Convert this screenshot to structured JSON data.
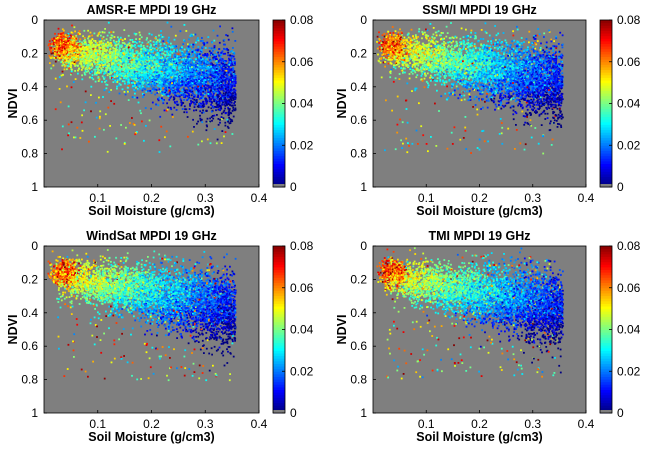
{
  "chart_data": [
    {
      "type": "heatmap",
      "title": "AMSR-E MPDI 19 GHz",
      "xlabel": "Soil Moisture (g/cm3)",
      "ylabel": "NDVI",
      "xlim": [
        0,
        0.4
      ],
      "ylim": [
        0,
        1
      ],
      "y_reversed": true,
      "xticks": [
        "0.1",
        "0.2",
        "0.3",
        "0.4"
      ],
      "yticks": [
        "0",
        "0.2",
        "0.4",
        "0.6",
        "0.8",
        "1"
      ],
      "colorbar": {
        "label": "",
        "range": [
          0,
          0.08
        ],
        "ticks": [
          "0.08",
          "0.06",
          "0.04",
          "0.02",
          "0"
        ],
        "colormap": "jet"
      },
      "background_color": "#7f7f7f",
      "clusters": [
        {
          "sm": 0.035,
          "ndvi": 0.15,
          "mpdi": 0.07,
          "desc_sm_sd": 0.012,
          "desc_ndvi_sd": 0.04
        },
        {
          "sm": 0.12,
          "ndvi": 0.22,
          "mpdi": 0.03
        },
        {
          "sm": 0.28,
          "ndvi": 0.37,
          "mpdi": 0.01
        }
      ]
    },
    {
      "type": "heatmap",
      "title": "SSM/I MPDI 19 GHz",
      "xlabel": "Soil Moisture (g/cm3)",
      "ylabel": "NDVI",
      "xlim": [
        0,
        0.4
      ],
      "ylim": [
        0,
        1
      ],
      "y_reversed": true,
      "xticks": [
        "0.1",
        "0.2",
        "0.3",
        "0.4"
      ],
      "yticks": [
        "0",
        "0.2",
        "0.4",
        "0.6",
        "0.8",
        "1"
      ],
      "colorbar": {
        "label": "",
        "range": [
          0,
          0.08
        ],
        "ticks": [
          "0.08",
          "0.06",
          "0.04",
          "0.02",
          "0"
        ],
        "colormap": "jet"
      },
      "background_color": "#7f7f7f",
      "clusters": [
        {
          "sm": 0.035,
          "ndvi": 0.15,
          "mpdi": 0.065
        },
        {
          "sm": 0.12,
          "ndvi": 0.22,
          "mpdi": 0.03
        },
        {
          "sm": 0.28,
          "ndvi": 0.37,
          "mpdi": 0.01
        }
      ]
    },
    {
      "type": "heatmap",
      "title": "WindSat MPDI 19 GHz",
      "xlabel": "Soil Moisture (g/cm3)",
      "ylabel": "NDVI",
      "xlim": [
        0,
        0.4
      ],
      "ylim": [
        0,
        1
      ],
      "y_reversed": true,
      "xticks": [
        "0.1",
        "0.2",
        "0.3",
        "0.4"
      ],
      "yticks": [
        "0",
        "0.2",
        "0.4",
        "0.6",
        "0.8",
        "1"
      ],
      "colorbar": {
        "label": "",
        "range": [
          0,
          0.08
        ],
        "ticks": [
          "0.08",
          "0.06",
          "0.04",
          "0.02",
          "0"
        ],
        "colormap": "jet"
      },
      "background_color": "#7f7f7f",
      "clusters": [
        {
          "sm": 0.035,
          "ndvi": 0.15,
          "mpdi": 0.068
        },
        {
          "sm": 0.12,
          "ndvi": 0.24,
          "mpdi": 0.03
        },
        {
          "sm": 0.28,
          "ndvi": 0.38,
          "mpdi": 0.01
        }
      ]
    },
    {
      "type": "heatmap",
      "title": "TMI MPDI 19 GHz",
      "xlabel": "Soil Moisture (g/cm3)",
      "ylabel": "NDVI",
      "xlim": [
        0,
        0.4
      ],
      "ylim": [
        0,
        1
      ],
      "y_reversed": true,
      "xticks": [
        "0.1",
        "0.2",
        "0.3",
        "0.4"
      ],
      "yticks": [
        "0",
        "0.2",
        "0.4",
        "0.6",
        "0.8",
        "1"
      ],
      "colorbar": {
        "label": "",
        "range": [
          0,
          0.08
        ],
        "ticks": [
          "0.08",
          "0.06",
          "0.04",
          "0.02",
          "0"
        ],
        "colormap": "jet"
      },
      "background_color": "#7f7f7f",
      "clusters": [
        {
          "sm": 0.035,
          "ndvi": 0.16,
          "mpdi": 0.065
        },
        {
          "sm": 0.12,
          "ndvi": 0.24,
          "mpdi": 0.028
        },
        {
          "sm": 0.28,
          "ndvi": 0.38,
          "mpdi": 0.01
        }
      ]
    }
  ]
}
